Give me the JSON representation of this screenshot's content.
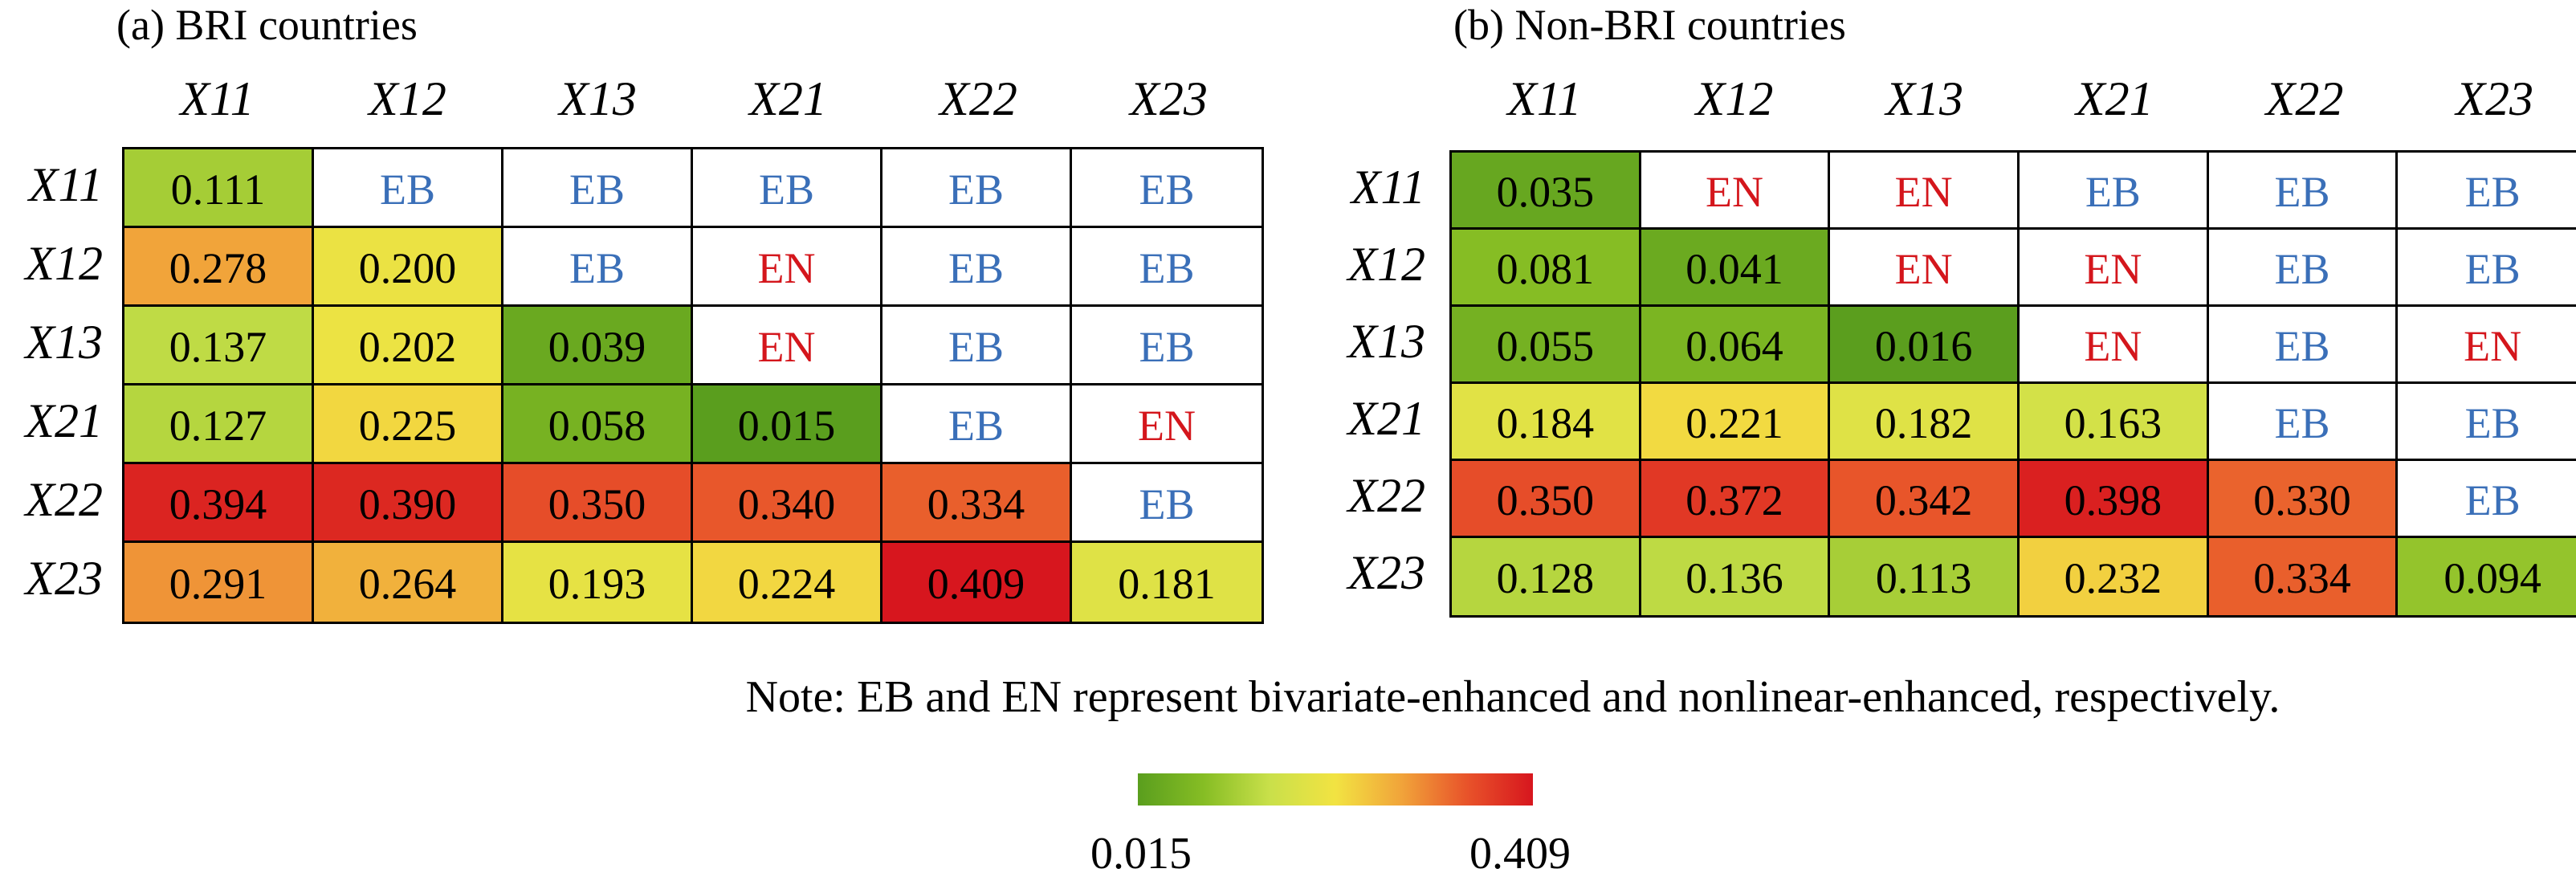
{
  "panels": [
    {
      "title": "(a) BRI countries",
      "columns": [
        "X11",
        "X12",
        "X13",
        "X21",
        "X22",
        "X23"
      ],
      "rows": [
        "X11",
        "X12",
        "X13",
        "X21",
        "X22",
        "X23"
      ],
      "cells": [
        [
          "0.111",
          "EB",
          "EB",
          "EB",
          "EB",
          "EB"
        ],
        [
          "0.278",
          "0.200",
          "EB",
          "EN",
          "EB",
          "EB"
        ],
        [
          "0.137",
          "0.202",
          "0.039",
          "EN",
          "EB",
          "EB"
        ],
        [
          "0.127",
          "0.225",
          "0.058",
          "0.015",
          "EB",
          "EN"
        ],
        [
          "0.394",
          "0.390",
          "0.350",
          "0.340",
          "0.334",
          "EB"
        ],
        [
          "0.291",
          "0.264",
          "0.193",
          "0.224",
          "0.409",
          "0.181"
        ]
      ]
    },
    {
      "title": "(b) Non-BRI countries",
      "columns": [
        "X11",
        "X12",
        "X13",
        "X21",
        "X22",
        "X23"
      ],
      "rows": [
        "X11",
        "X12",
        "X13",
        "X21",
        "X22",
        "X23"
      ],
      "cells": [
        [
          "0.035",
          "EN",
          "EN",
          "EB",
          "EB",
          "EB"
        ],
        [
          "0.081",
          "0.041",
          "EN",
          "EN",
          "EB",
          "EB"
        ],
        [
          "0.055",
          "0.064",
          "0.016",
          "EN",
          "EB",
          "EN"
        ],
        [
          "0.184",
          "0.221",
          "0.182",
          "0.163",
          "EB",
          "EB"
        ],
        [
          "0.350",
          "0.372",
          "0.342",
          "0.398",
          "0.330",
          "EB"
        ],
        [
          "0.128",
          "0.136",
          "0.113",
          "0.232",
          "0.334",
          "0.094"
        ]
      ]
    }
  ],
  "note": "Note: EB and EN represent bivariate-enhanced and nonlinear-enhanced, respectively.",
  "colorbar": {
    "min": "0.015",
    "max": "0.409",
    "min_value": 0.015,
    "max_value": 0.409
  },
  "colors": {
    "scale": [
      "#5a9e1e",
      "#86bd24",
      "#c9e04a",
      "#f2e342",
      "#f1a43a",
      "#e8532a",
      "#d7161e"
    ],
    "eb_text": "#3a6fb8",
    "en_text": "#d4161c"
  },
  "chart_data": {
    "type": "heatmap",
    "x": [
      "X11",
      "X12",
      "X13",
      "X21",
      "X22",
      "X23"
    ],
    "y": [
      "X11",
      "X12",
      "X13",
      "X21",
      "X22",
      "X23"
    ],
    "series": [
      {
        "name": "(a) BRI countries",
        "values": [
          [
            0.111,
            null,
            null,
            null,
            null,
            null
          ],
          [
            0.278,
            0.2,
            null,
            null,
            null,
            null
          ],
          [
            0.137,
            0.202,
            0.039,
            null,
            null,
            null
          ],
          [
            0.127,
            0.225,
            0.058,
            0.015,
            null,
            null
          ],
          [
            0.394,
            0.39,
            0.35,
            0.34,
            0.334,
            null
          ],
          [
            0.291,
            0.264,
            0.193,
            0.224,
            0.409,
            0.181
          ]
        ]
      },
      {
        "name": "(b) Non-BRI countries",
        "values": [
          [
            0.035,
            null,
            null,
            null,
            null,
            null
          ],
          [
            0.081,
            0.041,
            null,
            null,
            null,
            null
          ],
          [
            0.055,
            0.064,
            0.016,
            null,
            null,
            null
          ],
          [
            0.184,
            0.221,
            0.182,
            0.163,
            null,
            null
          ],
          [
            0.35,
            0.372,
            0.342,
            0.398,
            0.33,
            null
          ],
          [
            0.128,
            0.136,
            0.113,
            0.232,
            0.334,
            0.094
          ]
        ]
      }
    ],
    "color_range": [
      0.015,
      0.409
    ]
  }
}
